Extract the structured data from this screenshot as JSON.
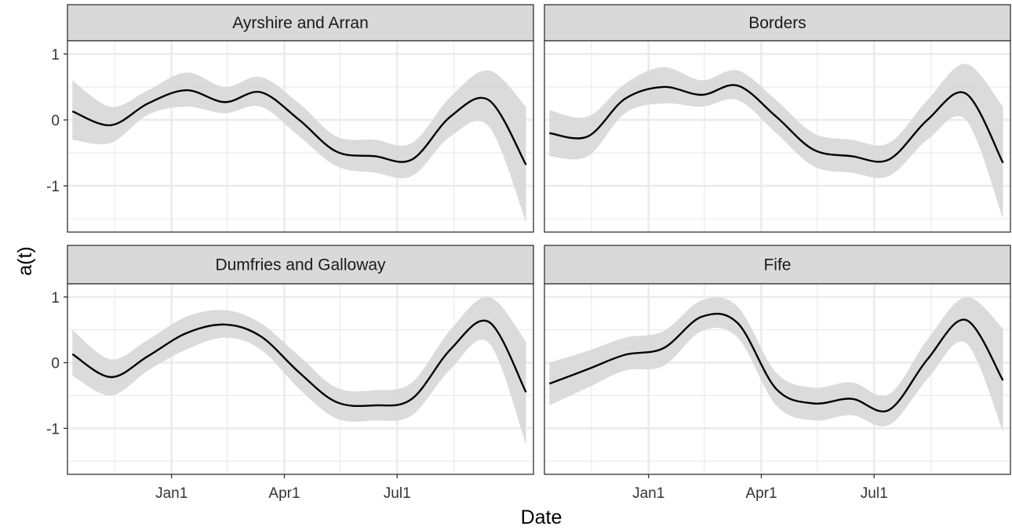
{
  "chart_data": {
    "type": "line",
    "layout": "facet-grid-2x2",
    "xlabel": "Date",
    "ylabel": "a(t)",
    "x_axis": {
      "type": "date",
      "range": [
        "2019-10-09",
        "2020-10-19"
      ],
      "tick_values": [
        "2020-01-01",
        "2020-04-01",
        "2020-07-01"
      ],
      "tick_labels": [
        "Jan1",
        "Apr1",
        "Jul1"
      ],
      "minor_gridlines": [
        "2019-11-16",
        "2020-02-15",
        "2020-05-16",
        "2020-08-16"
      ]
    },
    "y_axis": {
      "range": [
        -1.7,
        1.2
      ],
      "tick_values": [
        -1,
        0,
        1
      ],
      "tick_labels": [
        "-1",
        "0",
        "1"
      ],
      "minor_gridlines": [
        -1.5,
        -0.5,
        0.5
      ]
    },
    "grid": true,
    "theme_colors": {
      "line": "#000000",
      "ribbon": "#d9d9d9",
      "strip": "#d9d9d9",
      "panel_border": "#333333",
      "grid": "#ebebeb"
    },
    "panels": [
      {
        "title": "Ayrshire and Arran",
        "x": [
          "2019-10-13",
          "2019-11-13",
          "2019-12-13",
          "2020-01-13",
          "2020-02-13",
          "2020-03-13",
          "2020-04-13",
          "2020-05-13",
          "2020-06-13",
          "2020-07-13",
          "2020-08-13",
          "2020-09-13",
          "2020-10-13"
        ],
        "y": [
          0.13,
          -0.08,
          0.25,
          0.45,
          0.27,
          0.42,
          0.0,
          -0.48,
          -0.55,
          -0.6,
          0.05,
          0.3,
          -0.68
        ],
        "lower": [
          -0.3,
          -0.35,
          0.08,
          0.2,
          0.1,
          0.2,
          -0.25,
          -0.7,
          -0.8,
          -0.85,
          -0.25,
          -0.1,
          -1.55
        ],
        "upper": [
          0.6,
          0.2,
          0.45,
          0.72,
          0.5,
          0.65,
          0.25,
          -0.25,
          -0.3,
          -0.35,
          0.35,
          0.75,
          0.2
        ]
      },
      {
        "title": "Borders",
        "x": [
          "2019-10-13",
          "2019-11-13",
          "2019-12-13",
          "2020-01-13",
          "2020-02-13",
          "2020-03-13",
          "2020-04-13",
          "2020-05-13",
          "2020-06-13",
          "2020-07-13",
          "2020-08-13",
          "2020-09-13",
          "2020-10-13"
        ],
        "y": [
          -0.2,
          -0.25,
          0.32,
          0.5,
          0.38,
          0.52,
          0.05,
          -0.45,
          -0.55,
          -0.6,
          0.0,
          0.4,
          -0.65
        ],
        "lower": [
          -0.55,
          -0.55,
          0.1,
          0.25,
          0.2,
          0.3,
          -0.2,
          -0.7,
          -0.8,
          -0.85,
          -0.3,
          0.0,
          -1.5
        ],
        "upper": [
          0.15,
          0.05,
          0.55,
          0.8,
          0.6,
          0.75,
          0.3,
          -0.2,
          -0.3,
          -0.35,
          0.3,
          0.85,
          0.2
        ]
      },
      {
        "title": "Dumfries and Galloway",
        "x": [
          "2019-10-13",
          "2019-11-13",
          "2019-12-13",
          "2020-01-13",
          "2020-02-13",
          "2020-03-13",
          "2020-04-13",
          "2020-05-13",
          "2020-06-13",
          "2020-07-13",
          "2020-08-13",
          "2020-09-13",
          "2020-10-13"
        ],
        "y": [
          0.13,
          -0.22,
          0.1,
          0.45,
          0.58,
          0.4,
          -0.15,
          -0.6,
          -0.65,
          -0.55,
          0.2,
          0.62,
          -0.45
        ],
        "lower": [
          -0.2,
          -0.5,
          -0.12,
          0.2,
          0.38,
          0.2,
          -0.4,
          -0.85,
          -0.88,
          -0.8,
          -0.1,
          0.3,
          -1.25
        ],
        "upper": [
          0.5,
          0.05,
          0.35,
          0.7,
          0.8,
          0.6,
          0.1,
          -0.38,
          -0.42,
          -0.3,
          0.5,
          1.0,
          0.32
        ]
      },
      {
        "title": "Fife",
        "x": [
          "2019-10-13",
          "2019-11-13",
          "2019-12-13",
          "2020-01-13",
          "2020-02-13",
          "2020-03-13",
          "2020-04-13",
          "2020-05-13",
          "2020-06-13",
          "2020-07-13",
          "2020-08-13",
          "2020-09-13",
          "2020-10-13"
        ],
        "y": [
          -0.32,
          -0.1,
          0.12,
          0.22,
          0.7,
          0.6,
          -0.4,
          -0.62,
          -0.55,
          -0.72,
          0.05,
          0.65,
          -0.27
        ],
        "lower": [
          -0.65,
          -0.38,
          -0.12,
          -0.05,
          0.48,
          0.38,
          -0.65,
          -0.88,
          -0.8,
          -0.95,
          -0.25,
          0.3,
          -1.05
        ],
        "upper": [
          0.0,
          0.18,
          0.38,
          0.48,
          0.95,
          0.85,
          -0.15,
          -0.38,
          -0.3,
          -0.48,
          0.35,
          1.0,
          0.52
        ]
      }
    ]
  }
}
